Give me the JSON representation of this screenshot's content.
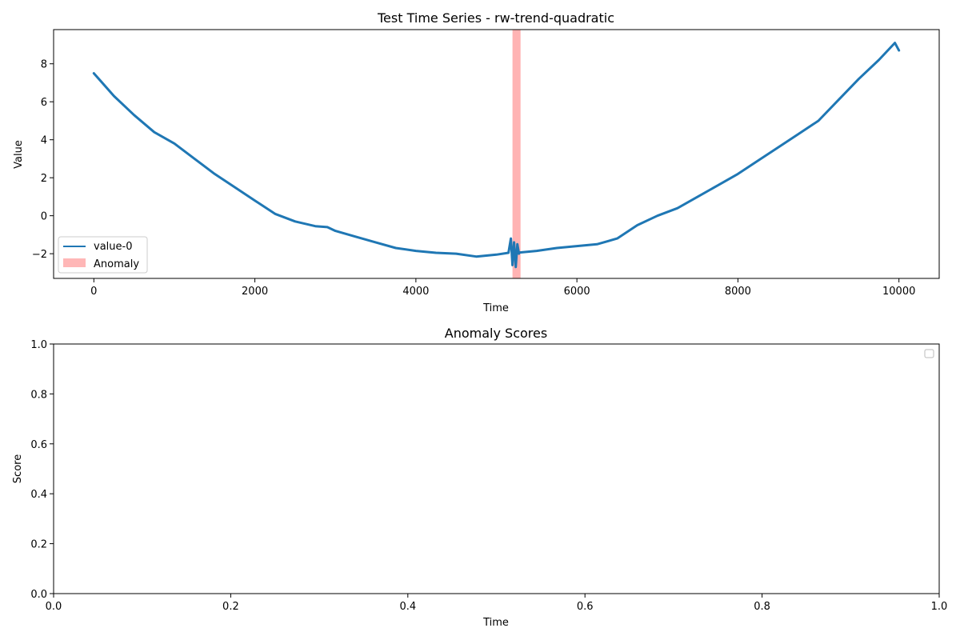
{
  "chart_data": [
    {
      "type": "line",
      "title": "Test Time Series - rw-trend-quadratic",
      "xlabel": "Time",
      "ylabel": "Value",
      "xlim": [
        -500,
        10500
      ],
      "ylim": [
        -3.3,
        9.8
      ],
      "xticks": [
        0,
        2000,
        4000,
        6000,
        8000,
        10000
      ],
      "xtick_labels": [
        "0",
        "2000",
        "4000",
        "6000",
        "8000",
        "10000"
      ],
      "yticks": [
        -2,
        0,
        2,
        4,
        6,
        8
      ],
      "ytick_labels": [
        "−2",
        "0",
        "2",
        "4",
        "6",
        "8"
      ],
      "grid": false,
      "legend_position": "lower-left",
      "series": [
        {
          "name": "value-0",
          "color": "#1f77b4",
          "x": [
            0,
            250,
            500,
            750,
            1000,
            1250,
            1500,
            1750,
            2000,
            2250,
            2500,
            2750,
            2900,
            3000,
            3250,
            3500,
            3750,
            4000,
            4250,
            4500,
            4750,
            5000,
            5150,
            5250,
            5500,
            5750,
            6000,
            6250,
            6500,
            6750,
            7000,
            7250,
            7500,
            7750,
            8000,
            8250,
            8500,
            8750,
            9000,
            9250,
            9500,
            9750,
            9950,
            10000
          ],
          "y": [
            7.5,
            6.3,
            5.3,
            4.4,
            3.8,
            3.0,
            2.2,
            1.5,
            0.8,
            0.1,
            -0.3,
            -0.55,
            -0.6,
            -0.8,
            -1.1,
            -1.4,
            -1.7,
            -1.85,
            -1.95,
            -2.0,
            -2.15,
            -2.05,
            -1.95,
            -1.95,
            -1.85,
            -1.7,
            -1.6,
            -1.5,
            -1.2,
            -0.5,
            0.0,
            0.4,
            1.0,
            1.6,
            2.2,
            2.9,
            3.6,
            4.3,
            5.0,
            6.1,
            7.2,
            8.2,
            9.1,
            8.7
          ]
        }
      ],
      "anomaly_spike": {
        "x": [
          5180,
          5200,
          5220,
          5240,
          5260,
          5280
        ],
        "y": [
          -1.2,
          -2.6,
          -1.4,
          -2.7,
          -1.5,
          -2.0
        ]
      },
      "anomaly_regions": [
        {
          "name": "Anomaly",
          "x_start": 5200,
          "x_end": 5300,
          "color": "#ff9999"
        }
      ],
      "legend": [
        {
          "label": "value-0",
          "kind": "line",
          "color": "#1f77b4"
        },
        {
          "label": "Anomaly",
          "kind": "patch",
          "color": "#ff9999"
        }
      ]
    },
    {
      "type": "line",
      "title": "Anomaly Scores",
      "xlabel": "Time",
      "ylabel": "Score",
      "xlim": [
        0,
        1
      ],
      "ylim": [
        0,
        1
      ],
      "xticks": [
        0,
        0.2,
        0.4,
        0.6,
        0.8,
        1.0
      ],
      "xtick_labels": [
        "0.0",
        "0.2",
        "0.4",
        "0.6",
        "0.8",
        "1.0"
      ],
      "yticks": [
        0,
        0.2,
        0.4,
        0.6,
        0.8,
        1.0
      ],
      "ytick_labels": [
        "0.0",
        "0.2",
        "0.4",
        "0.6",
        "0.8",
        "1.0"
      ],
      "grid": false,
      "legend_position": "top-right",
      "series": [],
      "legend": []
    }
  ]
}
